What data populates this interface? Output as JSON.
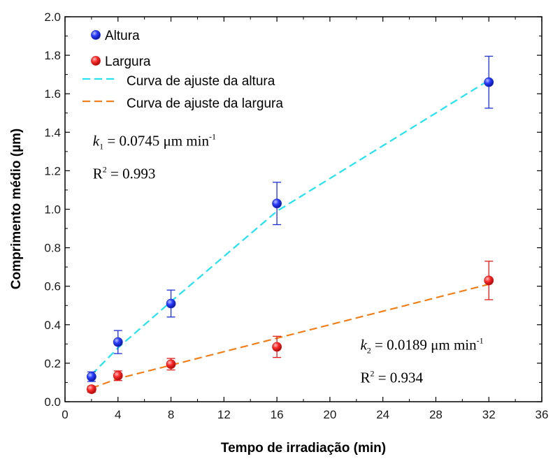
{
  "chart_data": {
    "type": "scatter",
    "xlabel": "Tempo de irradiação (min)",
    "ylabel": "Comprimento médio (µm)",
    "xlim": [
      0,
      36
    ],
    "ylim": [
      0.0,
      2.0
    ],
    "xticks": [
      0,
      4,
      8,
      12,
      16,
      20,
      24,
      28,
      32,
      36
    ],
    "yticks": [
      0.0,
      0.2,
      0.4,
      0.6,
      0.8,
      1.0,
      1.2,
      1.4,
      1.6,
      1.8,
      2.0
    ],
    "xtick_labels": [
      "0",
      "4",
      "8",
      "12",
      "16",
      "20",
      "24",
      "28",
      "32",
      "36"
    ],
    "ytick_labels": [
      "0.0",
      "0.2",
      "0.4",
      "0.6",
      "0.8",
      "1.0",
      "1.2",
      "1.4",
      "1.6",
      "1.8",
      "2.0"
    ],
    "legend_position": "top-left",
    "series": [
      {
        "name": "Altura",
        "kind": "points",
        "color": "#1f2fd6",
        "x": [
          2,
          4,
          8,
          16,
          32
        ],
        "y": [
          0.13,
          0.31,
          0.51,
          1.03,
          1.66
        ],
        "err": [
          0.025,
          0.06,
          0.07,
          0.11,
          0.135
        ]
      },
      {
        "name": "Largura",
        "kind": "points",
        "color": "#e01a1a",
        "x": [
          2,
          4,
          8,
          16,
          32
        ],
        "y": [
          0.065,
          0.135,
          0.195,
          0.285,
          0.63
        ],
        "err": [
          0.015,
          0.025,
          0.03,
          0.055,
          0.1
        ]
      },
      {
        "name": "Curva de ajuste da altura",
        "kind": "fit",
        "color": "#22e4f0",
        "x": [
          2,
          4,
          8,
          16,
          32
        ],
        "y": [
          0.14,
          0.28,
          0.52,
          0.99,
          1.67
        ]
      },
      {
        "name": "Curva de ajuste da largura",
        "kind": "fit",
        "color": "#f07f1a",
        "x": [
          2,
          4,
          8,
          16,
          32
        ],
        "y": [
          0.07,
          0.12,
          0.19,
          0.33,
          0.61
        ]
      }
    ],
    "annotations": [
      {
        "k_var": "k",
        "k_sub": "1",
        "k_text": "= 0.0745 μm min",
        "k_sup": "-1",
        "r2_base": "R",
        "r2_sup": "2",
        "r2_text": "= 0.993",
        "anchor_x": 2.1,
        "anchor_y": 1.33
      },
      {
        "k_var": "k",
        "k_sub": "2",
        "k_text": "= 0.0189 μm min",
        "k_sup": "-1",
        "r2_base": "R",
        "r2_sup": "2",
        "r2_text": "= 0.934",
        "anchor_x": 22.3,
        "anchor_y": 0.27
      }
    ]
  }
}
